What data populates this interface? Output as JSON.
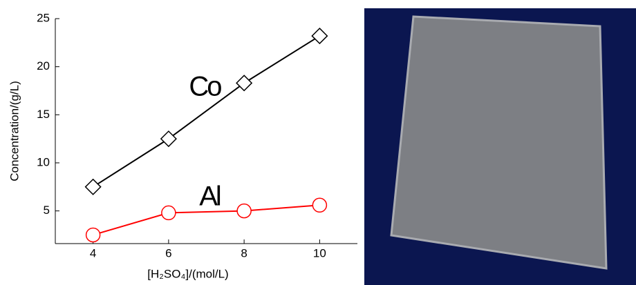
{
  "chart_data": {
    "type": "line",
    "x": [
      4,
      6,
      8,
      10
    ],
    "series": [
      {
        "name": "Co",
        "color": "#000000",
        "marker": "diamond",
        "values": [
          7.5,
          12.5,
          18.3,
          23.2
        ]
      },
      {
        "name": "Al",
        "color": "#ff0000",
        "marker": "circle",
        "values": [
          2.5,
          4.8,
          5.0,
          5.6
        ]
      }
    ],
    "xlabel": "[H₂SO₄]/(mol/L)",
    "ylabel": "Concentration/(g/L)",
    "xlim": [
      3,
      11
    ],
    "xticks": [
      4,
      6,
      8,
      10
    ],
    "ylim": [
      1.6,
      25
    ],
    "yticks": [
      5,
      10,
      15,
      20,
      25
    ],
    "grid": false
  }
}
